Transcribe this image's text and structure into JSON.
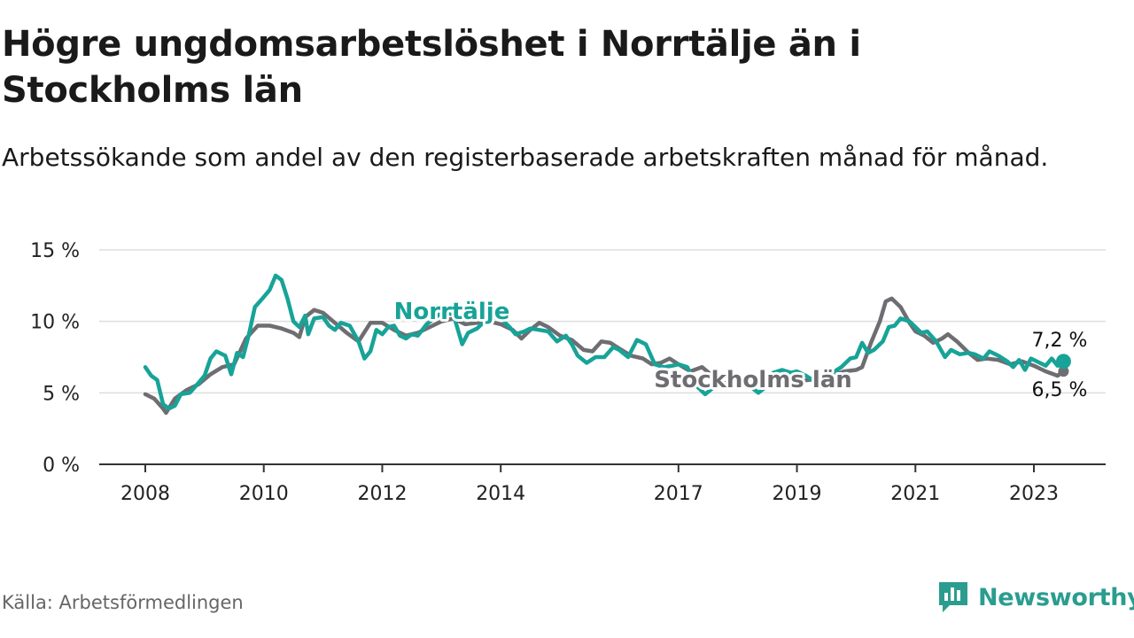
{
  "title": "Högre ungdomsarbetslöshet i Norrtälje än i Stockholms län",
  "subtitle": "Arbetssökande som andel av den registerbaserade arbetskraften månad för månad.",
  "source": "Källa: Arbetsförmedlingen",
  "brand": "Newsworthy",
  "colors": {
    "norrtalje": "#17a398",
    "stockholm": "#6e6e72",
    "grid": "#dddddd",
    "axis": "#333333",
    "brand": "#2a9d8f"
  },
  "chart_data": {
    "type": "line",
    "title": "Högre ungdomsarbetslöshet i Norrtälje än i Stockholms län",
    "xlabel": "",
    "ylabel": "",
    "ylim": [
      0,
      15
    ],
    "xlim": [
      2007.5,
      2024.2
    ],
    "y_ticks": [
      {
        "value": 0,
        "label": "0 %"
      },
      {
        "value": 5,
        "label": "5 %"
      },
      {
        "value": 10,
        "label": "10 %"
      },
      {
        "value": 15,
        "label": "15 %"
      }
    ],
    "x_ticks": [
      {
        "value": 2008,
        "label": "2008"
      },
      {
        "value": 2010,
        "label": "2010"
      },
      {
        "value": 2012,
        "label": "2012"
      },
      {
        "value": 2014,
        "label": "2014"
      },
      {
        "value": 2017,
        "label": "2017"
      },
      {
        "value": 2019,
        "label": "2019"
      },
      {
        "value": 2021,
        "label": "2021"
      },
      {
        "value": 2023,
        "label": "2023"
      }
    ],
    "series": [
      {
        "name": "Stockholms län",
        "label": "Stockholms län",
        "color": "#6e6e72",
        "end_label": "6,5 %",
        "points": [
          [
            2008.0,
            4.9
          ],
          [
            2008.15,
            4.6
          ],
          [
            2008.3,
            3.9
          ],
          [
            2008.35,
            3.6
          ],
          [
            2008.5,
            4.6
          ],
          [
            2008.7,
            5.2
          ],
          [
            2008.9,
            5.6
          ],
          [
            2009.1,
            6.3
          ],
          [
            2009.3,
            6.8
          ],
          [
            2009.5,
            7.0
          ],
          [
            2009.7,
            8.8
          ],
          [
            2009.9,
            9.7
          ],
          [
            2010.1,
            9.7
          ],
          [
            2010.3,
            9.5
          ],
          [
            2010.5,
            9.2
          ],
          [
            2010.6,
            8.9
          ],
          [
            2010.7,
            10.3
          ],
          [
            2010.85,
            10.8
          ],
          [
            2011.0,
            10.6
          ],
          [
            2011.2,
            9.9
          ],
          [
            2011.4,
            9.2
          ],
          [
            2011.6,
            8.6
          ],
          [
            2011.8,
            9.9
          ],
          [
            2012.0,
            9.9
          ],
          [
            2012.2,
            9.4
          ],
          [
            2012.4,
            9.0
          ],
          [
            2012.6,
            9.2
          ],
          [
            2012.8,
            9.6
          ],
          [
            2013.0,
            10.0
          ],
          [
            2013.2,
            10.2
          ],
          [
            2013.4,
            9.8
          ],
          [
            2013.6,
            9.9
          ],
          [
            2013.8,
            10.0
          ],
          [
            2014.0,
            9.8
          ],
          [
            2014.2,
            9.4
          ],
          [
            2014.35,
            8.8
          ],
          [
            2014.5,
            9.4
          ],
          [
            2014.65,
            9.9
          ],
          [
            2014.8,
            9.6
          ],
          [
            2015.0,
            9.0
          ],
          [
            2015.2,
            8.7
          ],
          [
            2015.4,
            8.0
          ],
          [
            2015.55,
            7.9
          ],
          [
            2015.7,
            8.6
          ],
          [
            2015.85,
            8.5
          ],
          [
            2016.0,
            8.1
          ],
          [
            2016.2,
            7.6
          ],
          [
            2016.4,
            7.4
          ],
          [
            2016.55,
            7.0
          ],
          [
            2016.7,
            7.1
          ],
          [
            2016.85,
            7.4
          ],
          [
            2017.0,
            7.0
          ],
          [
            2017.2,
            6.5
          ],
          [
            2017.4,
            6.8
          ],
          [
            2017.6,
            6.1
          ],
          [
            2017.8,
            5.5
          ],
          [
            2018.0,
            5.6
          ],
          [
            2018.2,
            5.9
          ],
          [
            2018.4,
            5.6
          ],
          [
            2018.6,
            5.9
          ],
          [
            2018.8,
            5.8
          ],
          [
            2019.0,
            5.8
          ],
          [
            2019.2,
            5.9
          ],
          [
            2019.4,
            6.0
          ],
          [
            2019.6,
            6.2
          ],
          [
            2019.8,
            6.5
          ],
          [
            2020.0,
            6.6
          ],
          [
            2020.1,
            6.8
          ],
          [
            2020.25,
            8.5
          ],
          [
            2020.4,
            10.0
          ],
          [
            2020.5,
            11.4
          ],
          [
            2020.6,
            11.6
          ],
          [
            2020.75,
            11.0
          ],
          [
            2020.9,
            9.9
          ],
          [
            2021.0,
            9.3
          ],
          [
            2021.15,
            9.0
          ],
          [
            2021.3,
            8.5
          ],
          [
            2021.45,
            8.8
          ],
          [
            2021.55,
            9.1
          ],
          [
            2021.7,
            8.6
          ],
          [
            2021.9,
            7.8
          ],
          [
            2022.05,
            7.3
          ],
          [
            2022.2,
            7.4
          ],
          [
            2022.4,
            7.3
          ],
          [
            2022.6,
            7.0
          ],
          [
            2022.8,
            7.2
          ],
          [
            2023.0,
            6.9
          ],
          [
            2023.2,
            6.5
          ],
          [
            2023.4,
            6.2
          ],
          [
            2023.5,
            6.5
          ]
        ]
      },
      {
        "name": "Norrtälje",
        "label": "Norrtälje",
        "color": "#17a398",
        "end_label": "7,2 %",
        "points": [
          [
            2008.0,
            6.8
          ],
          [
            2008.1,
            6.2
          ],
          [
            2008.2,
            5.9
          ],
          [
            2008.3,
            4.2
          ],
          [
            2008.4,
            3.9
          ],
          [
            2008.5,
            4.1
          ],
          [
            2008.6,
            4.9
          ],
          [
            2008.75,
            5.0
          ],
          [
            2008.9,
            5.7
          ],
          [
            2009.0,
            6.2
          ],
          [
            2009.1,
            7.4
          ],
          [
            2009.2,
            7.9
          ],
          [
            2009.35,
            7.6
          ],
          [
            2009.45,
            6.3
          ],
          [
            2009.55,
            7.8
          ],
          [
            2009.65,
            7.5
          ],
          [
            2009.75,
            9.1
          ],
          [
            2009.85,
            11.0
          ],
          [
            2010.0,
            11.7
          ],
          [
            2010.1,
            12.2
          ],
          [
            2010.2,
            13.2
          ],
          [
            2010.3,
            12.9
          ],
          [
            2010.4,
            11.6
          ],
          [
            2010.5,
            10.0
          ],
          [
            2010.6,
            9.6
          ],
          [
            2010.7,
            10.4
          ],
          [
            2010.75,
            9.1
          ],
          [
            2010.85,
            10.2
          ],
          [
            2011.0,
            10.3
          ],
          [
            2011.1,
            9.7
          ],
          [
            2011.2,
            9.4
          ],
          [
            2011.3,
            9.9
          ],
          [
            2011.45,
            9.7
          ],
          [
            2011.6,
            8.6
          ],
          [
            2011.7,
            7.4
          ],
          [
            2011.8,
            7.9
          ],
          [
            2011.9,
            9.4
          ],
          [
            2012.0,
            9.1
          ],
          [
            2012.1,
            9.6
          ],
          [
            2012.2,
            9.7
          ],
          [
            2012.3,
            9.0
          ],
          [
            2012.4,
            8.8
          ],
          [
            2012.5,
            9.1
          ],
          [
            2012.6,
            9.0
          ],
          [
            2012.75,
            9.8
          ],
          [
            2013.0,
            10.6
          ],
          [
            2013.2,
            10.5
          ],
          [
            2013.35,
            8.4
          ],
          [
            2013.45,
            9.2
          ],
          [
            2013.6,
            9.5
          ],
          [
            2013.8,
            10.3
          ],
          [
            2014.0,
            10.2
          ],
          [
            2014.15,
            9.6
          ],
          [
            2014.25,
            9.1
          ],
          [
            2014.4,
            9.3
          ],
          [
            2014.5,
            9.5
          ],
          [
            2014.65,
            9.4
          ],
          [
            2014.8,
            9.3
          ],
          [
            2014.95,
            8.6
          ],
          [
            2015.1,
            9.0
          ],
          [
            2015.2,
            8.4
          ],
          [
            2015.3,
            7.6
          ],
          [
            2015.45,
            7.1
          ],
          [
            2015.6,
            7.5
          ],
          [
            2015.75,
            7.5
          ],
          [
            2015.9,
            8.2
          ],
          [
            2016.0,
            8.0
          ],
          [
            2016.15,
            7.5
          ],
          [
            2016.3,
            8.7
          ],
          [
            2016.45,
            8.4
          ],
          [
            2016.6,
            7.0
          ],
          [
            2016.75,
            6.8
          ],
          [
            2016.9,
            6.9
          ],
          [
            2017.0,
            7.0
          ],
          [
            2017.15,
            6.8
          ],
          [
            2017.3,
            5.5
          ],
          [
            2017.45,
            4.9
          ],
          [
            2017.6,
            5.4
          ],
          [
            2017.8,
            5.7
          ],
          [
            2018.0,
            5.6
          ],
          [
            2018.2,
            5.5
          ],
          [
            2018.35,
            5.0
          ],
          [
            2018.5,
            5.5
          ],
          [
            2018.6,
            6.4
          ],
          [
            2018.75,
            6.6
          ],
          [
            2018.9,
            6.4
          ],
          [
            2019.0,
            6.5
          ],
          [
            2019.15,
            6.2
          ],
          [
            2019.3,
            5.8
          ],
          [
            2019.45,
            6.2
          ],
          [
            2019.6,
            6.4
          ],
          [
            2019.75,
            6.8
          ],
          [
            2019.9,
            7.4
          ],
          [
            2020.0,
            7.5
          ],
          [
            2020.1,
            8.5
          ],
          [
            2020.2,
            7.8
          ],
          [
            2020.3,
            8.0
          ],
          [
            2020.45,
            8.6
          ],
          [
            2020.55,
            9.6
          ],
          [
            2020.65,
            9.7
          ],
          [
            2020.75,
            10.2
          ],
          [
            2020.9,
            10.0
          ],
          [
            2021.0,
            9.6
          ],
          [
            2021.1,
            9.2
          ],
          [
            2021.2,
            9.3
          ],
          [
            2021.35,
            8.6
          ],
          [
            2021.5,
            7.5
          ],
          [
            2021.6,
            8.0
          ],
          [
            2021.75,
            7.7
          ],
          [
            2021.9,
            7.8
          ],
          [
            2022.0,
            7.7
          ],
          [
            2022.15,
            7.4
          ],
          [
            2022.25,
            7.9
          ],
          [
            2022.4,
            7.6
          ],
          [
            2022.55,
            7.2
          ],
          [
            2022.65,
            6.8
          ],
          [
            2022.75,
            7.3
          ],
          [
            2022.85,
            6.6
          ],
          [
            2022.95,
            7.4
          ],
          [
            2023.1,
            7.1
          ],
          [
            2023.2,
            6.9
          ],
          [
            2023.3,
            7.4
          ],
          [
            2023.4,
            6.9
          ],
          [
            2023.5,
            7.2
          ]
        ]
      }
    ],
    "annotations": [
      {
        "text": "Norrtälje",
        "series": "Norrtälje"
      },
      {
        "text": "Stockholms län",
        "series": "Stockholms län"
      }
    ]
  }
}
